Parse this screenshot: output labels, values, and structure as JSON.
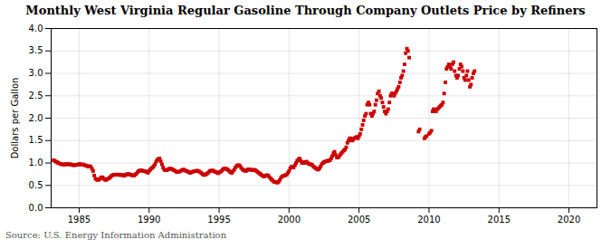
{
  "chart_data": {
    "type": "scatter",
    "title": "Monthly West Virginia Regular Gasoline Through Company Outlets Price by Refiners",
    "ylabel": "Dollars per Gallon",
    "source": "Source: U.S. Energy Information Administration",
    "color": "#CC0000",
    "marker": "square",
    "grid": true,
    "xlim": [
      1983.0,
      2022.0
    ],
    "ylim": [
      0.0,
      4.0
    ],
    "xticks": [
      1985,
      1990,
      1995,
      2000,
      2005,
      2010,
      2015,
      2020
    ],
    "yticks": [
      {
        "value": 0,
        "label": "0.0"
      },
      0.5,
      {
        "value": 1,
        "label": "1.0"
      },
      1.5,
      {
        "value": 2,
        "label": "2.0"
      },
      2.5,
      {
        "value": 3,
        "label": "3.0"
      },
      3.5,
      {
        "value": 4,
        "label": "4.0"
      }
    ],
    "x": [
      1983.17,
      1983.25,
      1983.33,
      1983.42,
      1983.5,
      1983.58,
      1983.67,
      1983.75,
      1983.83,
      1983.92,
      1984.0,
      1984.08,
      1984.17,
      1984.25,
      1984.33,
      1984.42,
      1984.5,
      1984.58,
      1984.67,
      1984.75,
      1984.83,
      1984.92,
      1985.0,
      1985.08,
      1985.17,
      1985.25,
      1985.33,
      1985.42,
      1985.5,
      1985.58,
      1985.67,
      1985.75,
      1985.83,
      1985.92,
      1986.0,
      1986.08,
      1986.17,
      1986.25,
      1986.33,
      1986.42,
      1986.5,
      1986.58,
      1986.67,
      1986.75,
      1986.83,
      1986.92,
      1987.0,
      1987.08,
      1987.17,
      1987.25,
      1987.33,
      1987.42,
      1987.5,
      1987.58,
      1987.67,
      1987.75,
      1987.83,
      1987.92,
      1988.0,
      1988.08,
      1988.17,
      1988.25,
      1988.33,
      1988.42,
      1988.5,
      1988.58,
      1988.67,
      1988.75,
      1988.83,
      1988.92,
      1989.0,
      1989.08,
      1989.17,
      1989.25,
      1989.33,
      1989.42,
      1989.5,
      1989.58,
      1989.67,
      1989.75,
      1989.83,
      1989.92,
      1990.0,
      1990.08,
      1990.17,
      1990.25,
      1990.33,
      1990.42,
      1990.5,
      1990.58,
      1990.67,
      1990.75,
      1990.83,
      1990.92,
      1991.0,
      1991.08,
      1991.17,
      1991.25,
      1991.33,
      1991.42,
      1991.5,
      1991.58,
      1991.67,
      1991.75,
      1991.83,
      1991.92,
      1992.0,
      1992.08,
      1992.17,
      1992.25,
      1992.33,
      1992.42,
      1992.5,
      1992.58,
      1992.67,
      1992.75,
      1992.83,
      1992.92,
      1993.0,
      1993.08,
      1993.17,
      1993.25,
      1993.33,
      1993.42,
      1993.5,
      1993.58,
      1993.67,
      1993.75,
      1993.83,
      1993.92,
      1994.0,
      1994.08,
      1994.17,
      1994.25,
      1994.33,
      1994.42,
      1994.5,
      1994.58,
      1994.67,
      1994.75,
      1994.83,
      1994.92,
      1995.0,
      1995.08,
      1995.17,
      1995.25,
      1995.33,
      1995.42,
      1995.5,
      1995.58,
      1995.67,
      1995.75,
      1995.83,
      1995.92,
      1996.0,
      1996.08,
      1996.17,
      1996.25,
      1996.33,
      1996.42,
      1996.5,
      1996.58,
      1996.67,
      1996.75,
      1996.83,
      1996.92,
      1997.0,
      1997.08,
      1997.17,
      1997.25,
      1997.33,
      1997.42,
      1997.5,
      1997.58,
      1997.67,
      1997.75,
      1997.83,
      1997.92,
      1998.0,
      1998.08,
      1998.17,
      1998.25,
      1998.33,
      1998.42,
      1998.5,
      1998.58,
      1998.67,
      1998.75,
      1998.83,
      1998.92,
      1999.0,
      1999.08,
      1999.17,
      1999.25,
      1999.33,
      1999.42,
      1999.5,
      1999.58,
      1999.67,
      1999.75,
      1999.83,
      1999.92,
      2000.0,
      2000.08,
      2000.17,
      2000.25,
      2000.33,
      2000.42,
      2000.5,
      2000.58,
      2000.67,
      2000.75,
      2000.83,
      2000.92,
      2001.0,
      2001.08,
      2001.17,
      2001.25,
      2001.33,
      2001.42,
      2001.5,
      2001.58,
      2001.67,
      2001.75,
      2001.83,
      2001.92,
      2002.0,
      2002.08,
      2002.17,
      2002.25,
      2002.33,
      2002.42,
      2002.5,
      2002.58,
      2002.67,
      2002.75,
      2002.83,
      2002.92,
      2003.0,
      2003.08,
      2003.17,
      2003.25,
      2003.33,
      2003.42,
      2003.5,
      2003.58,
      2003.67,
      2003.75,
      2003.83,
      2003.92,
      2004.0,
      2004.08,
      2004.17,
      2004.25,
      2004.33,
      2004.42,
      2004.5,
      2004.58,
      2004.67,
      2004.75,
      2004.83,
      2004.92,
      2005.0,
      2005.08,
      2005.17,
      2005.25,
      2005.33,
      2005.42,
      2005.5,
      2005.58,
      2005.67,
      2005.75,
      2005.83,
      2005.92,
      2006.0,
      2006.08,
      2006.17,
      2006.25,
      2006.33,
      2006.42,
      2006.5,
      2006.58,
      2006.67,
      2006.75,
      2006.83,
      2006.92,
      2007.0,
      2007.08,
      2007.17,
      2007.25,
      2007.33,
      2007.42,
      2007.5,
      2007.58,
      2007.67,
      2007.75,
      2007.83,
      2007.92,
      2008.0,
      2008.08,
      2008.17,
      2008.25,
      2008.33,
      2008.42,
      2008.5,
      2008.58,
      2009.25,
      2009.33,
      2009.67,
      2009.75,
      2009.83,
      2010.0,
      2010.08,
      2010.17,
      2010.25,
      2010.33,
      2010.42,
      2010.5,
      2010.58,
      2010.67,
      2010.75,
      2010.83,
      2010.92,
      2011.0,
      2011.08,
      2011.17,
      2011.25,
      2011.33,
      2011.42,
      2011.5,
      2011.58,
      2011.67,
      2011.75,
      2011.83,
      2011.92,
      2012.0,
      2012.08,
      2012.17,
      2012.25,
      2012.33,
      2012.42,
      2012.5,
      2012.58,
      2012.67,
      2012.75,
      2012.83,
      2012.92,
      2013.0,
      2013.08,
      2013.17,
      2013.25
    ],
    "values": [
      1.06,
      1.05,
      1.03,
      1.02,
      1.0,
      0.99,
      0.98,
      0.97,
      0.97,
      0.96,
      0.97,
      0.98,
      0.97,
      0.97,
      0.97,
      0.97,
      0.96,
      0.95,
      0.95,
      0.96,
      0.96,
      0.96,
      0.98,
      0.97,
      0.96,
      0.97,
      0.96,
      0.95,
      0.94,
      0.93,
      0.92,
      0.93,
      0.92,
      0.87,
      0.82,
      0.72,
      0.65,
      0.63,
      0.62,
      0.63,
      0.65,
      0.68,
      0.68,
      0.65,
      0.63,
      0.62,
      0.64,
      0.65,
      0.67,
      0.69,
      0.72,
      0.73,
      0.74,
      0.74,
      0.74,
      0.74,
      0.74,
      0.73,
      0.74,
      0.73,
      0.72,
      0.72,
      0.74,
      0.75,
      0.75,
      0.75,
      0.74,
      0.73,
      0.72,
      0.72,
      0.74,
      0.76,
      0.79,
      0.82,
      0.83,
      0.84,
      0.83,
      0.82,
      0.82,
      0.81,
      0.8,
      0.78,
      0.82,
      0.85,
      0.88,
      0.9,
      0.93,
      0.97,
      1.03,
      1.07,
      1.09,
      1.1,
      1.04,
      0.97,
      0.9,
      0.85,
      0.84,
      0.84,
      0.85,
      0.87,
      0.87,
      0.87,
      0.86,
      0.84,
      0.83,
      0.81,
      0.8,
      0.8,
      0.81,
      0.82,
      0.84,
      0.85,
      0.85,
      0.83,
      0.82,
      0.81,
      0.8,
      0.78,
      0.79,
      0.8,
      0.81,
      0.82,
      0.82,
      0.83,
      0.82,
      0.81,
      0.79,
      0.77,
      0.75,
      0.73,
      0.74,
      0.75,
      0.77,
      0.79,
      0.82,
      0.83,
      0.83,
      0.83,
      0.81,
      0.8,
      0.79,
      0.77,
      0.79,
      0.8,
      0.82,
      0.85,
      0.87,
      0.88,
      0.87,
      0.86,
      0.84,
      0.81,
      0.79,
      0.78,
      0.82,
      0.85,
      0.9,
      0.93,
      0.95,
      0.95,
      0.93,
      0.89,
      0.86,
      0.84,
      0.83,
      0.82,
      0.84,
      0.86,
      0.86,
      0.85,
      0.84,
      0.84,
      0.85,
      0.84,
      0.82,
      0.8,
      0.78,
      0.76,
      0.74,
      0.72,
      0.7,
      0.7,
      0.72,
      0.73,
      0.72,
      0.69,
      0.66,
      0.63,
      0.61,
      0.58,
      0.58,
      0.57,
      0.56,
      0.58,
      0.62,
      0.67,
      0.7,
      0.71,
      0.72,
      0.73,
      0.74,
      0.78,
      0.82,
      0.88,
      0.92,
      0.92,
      0.9,
      0.95,
      1.0,
      1.05,
      1.08,
      1.1,
      1.05,
      1.0,
      1.02,
      1.0,
      1.02,
      1.03,
      1.0,
      0.98,
      0.97,
      0.97,
      0.95,
      0.92,
      0.9,
      0.88,
      0.86,
      0.85,
      0.88,
      0.92,
      0.97,
      1.0,
      1.02,
      1.03,
      1.04,
      1.05,
      1.05,
      1.06,
      1.1,
      1.15,
      1.22,
      1.25,
      1.18,
      1.12,
      1.12,
      1.15,
      1.19,
      1.22,
      1.25,
      1.28,
      1.3,
      1.35,
      1.45,
      1.5,
      1.55,
      1.55,
      1.5,
      1.52,
      1.55,
      1.57,
      1.58,
      1.55,
      1.6,
      1.65,
      1.75,
      1.85,
      1.95,
      2.05,
      2.1,
      2.3,
      2.35,
      2.3,
      2.1,
      2.05,
      2.1,
      2.15,
      2.3,
      2.4,
      2.55,
      2.6,
      2.5,
      2.45,
      2.35,
      2.25,
      2.15,
      2.1,
      2.15,
      2.2,
      2.35,
      2.5,
      2.55,
      2.55,
      2.5,
      2.55,
      2.6,
      2.65,
      2.7,
      2.8,
      2.9,
      2.95,
      3.05,
      3.2,
      3.45,
      3.55,
      3.5,
      3.35,
      1.7,
      1.75,
      1.55,
      1.58,
      1.6,
      1.65,
      1.68,
      1.72,
      2.15,
      2.2,
      2.18,
      2.15,
      2.2,
      2.22,
      2.25,
      2.28,
      2.3,
      2.35,
      2.55,
      2.8,
      3.1,
      3.15,
      3.2,
      3.15,
      3.1,
      3.2,
      3.25,
      3.05,
      2.95,
      2.9,
      2.95,
      3.1,
      3.2,
      3.15,
      3.05,
      2.9,
      2.85,
      2.95,
      3.05,
      2.85,
      2.7,
      2.75,
      2.9,
      3.0,
      3.05
    ]
  }
}
